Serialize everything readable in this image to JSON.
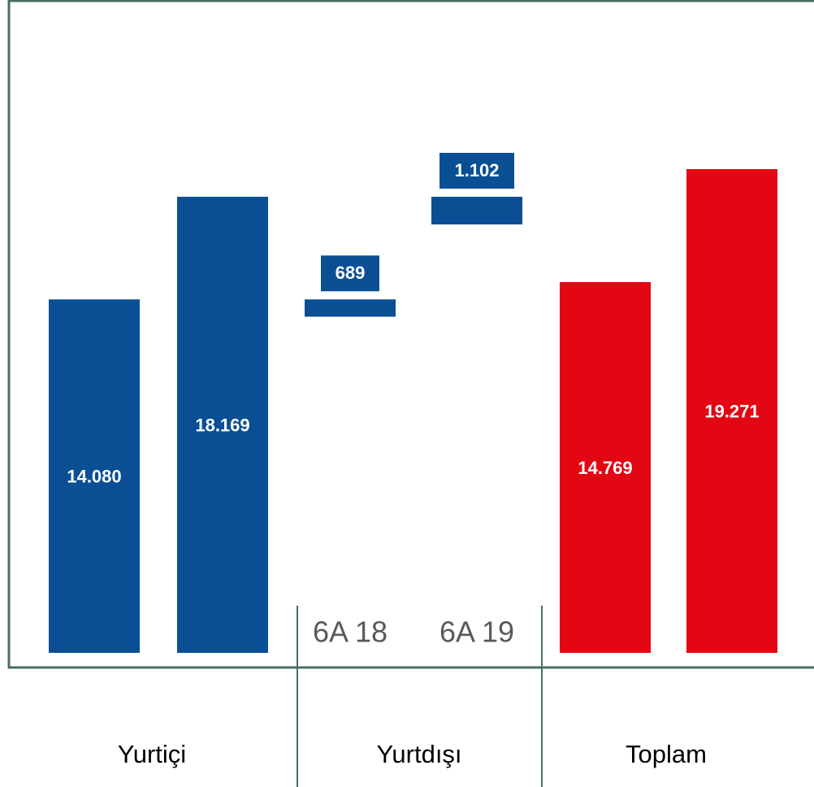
{
  "chart_data": {
    "type": "waterfall",
    "groups": [
      {
        "label": "Yurtiçi",
        "categories": [
          "6A 18",
          "6A 19"
        ],
        "values": [
          14080,
          18169
        ],
        "value_labels": [
          "14.080",
          "18.169"
        ],
        "color": "#0a4f94"
      },
      {
        "label": "Yurtdışı",
        "categories": [
          "6A 18",
          "6A 19"
        ],
        "values": [
          689,
          1102
        ],
        "value_labels": [
          "689",
          "1.102"
        ],
        "color": "#0a4f94"
      },
      {
        "label": "Toplam",
        "categories": [
          "6A 18",
          "6A 19"
        ],
        "values": [
          14769,
          19271
        ],
        "value_labels": [
          "14.769",
          "19.271"
        ],
        "color": "#e30613"
      }
    ]
  }
}
